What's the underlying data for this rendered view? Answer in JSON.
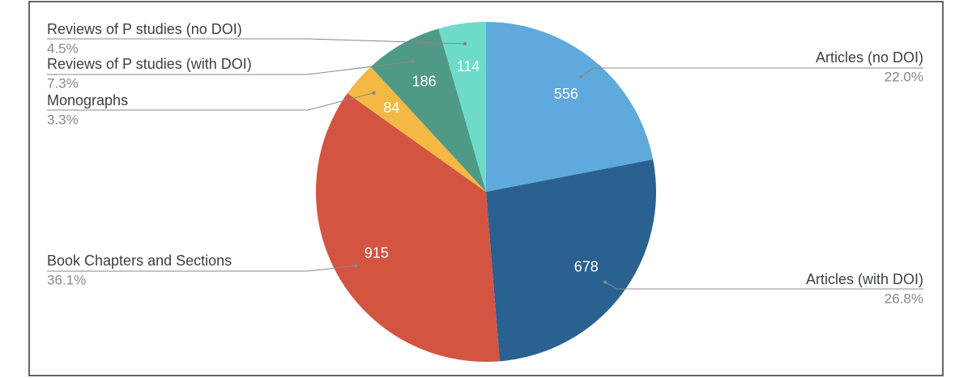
{
  "chart_data": {
    "type": "pie",
    "categories": [
      "Articles (no DOI)",
      "Articles (with DOI)",
      "Book Chapters and Sections",
      "Monographs",
      "Reviews of P studies (with DOI)",
      "Reviews of P studies (no DOI)"
    ],
    "values": [
      556,
      678,
      915,
      84,
      186,
      114
    ],
    "percent_labels": [
      "22.0%",
      "26.8%",
      "36.1%",
      "3.3%",
      "7.3%",
      "4.5%"
    ],
    "colors": [
      "#5fa9dd",
      "#2a6190",
      "#d35541",
      "#f4b944",
      "#4e9a87",
      "#6edbca"
    ]
  }
}
